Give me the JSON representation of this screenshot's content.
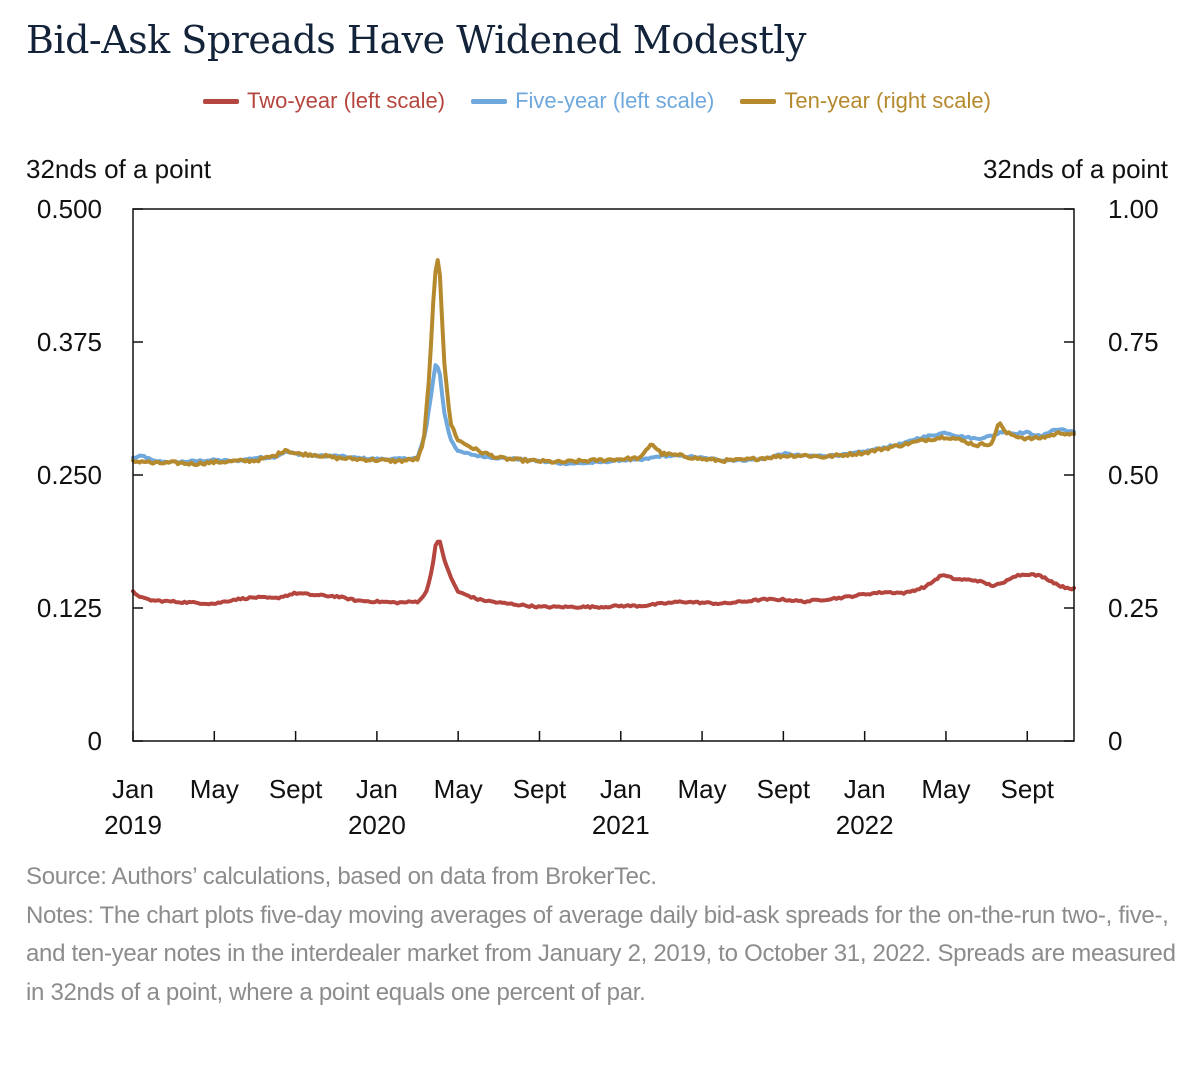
{
  "chart_data": {
    "type": "line",
    "title": "Bid-Ask Spreads Have Widened Modestly",
    "ylabel_left": "32nds of a point",
    "ylabel_right": "32nds of a point",
    "ylim_left": [
      0,
      0.5
    ],
    "ylim_right": [
      0,
      1.0
    ],
    "yticks_left": [
      "0",
      "0.125",
      "0.250",
      "0.375",
      "0.500"
    ],
    "yticks_right": [
      "0",
      "0.25",
      "0.50",
      "0.75",
      "1.00"
    ],
    "x_range_months": [
      0,
      46.3
    ],
    "xticks": [
      {
        "m": 0,
        "line1": "Jan",
        "line2": "2019"
      },
      {
        "m": 4,
        "line1": "May",
        "line2": ""
      },
      {
        "m": 8,
        "line1": "Sept",
        "line2": ""
      },
      {
        "m": 12,
        "line1": "Jan",
        "line2": "2020"
      },
      {
        "m": 16,
        "line1": "May",
        "line2": ""
      },
      {
        "m": 20,
        "line1": "Sept",
        "line2": ""
      },
      {
        "m": 24,
        "line1": "Jan",
        "line2": "2021"
      },
      {
        "m": 28,
        "line1": "May",
        "line2": ""
      },
      {
        "m": 32,
        "line1": "Sept",
        "line2": ""
      },
      {
        "m": 36,
        "line1": "Jan",
        "line2": "2022"
      },
      {
        "m": 40,
        "line1": "May",
        "line2": ""
      },
      {
        "m": 44,
        "line1": "Sept",
        "line2": ""
      }
    ],
    "series": [
      {
        "name": "Two-year (left scale)",
        "axis": "left",
        "color": "#b5463f",
        "points": [
          [
            0,
            0.14
          ],
          [
            0.5,
            0.134
          ],
          [
            1,
            0.132
          ],
          [
            2,
            0.131
          ],
          [
            3,
            0.13
          ],
          [
            4,
            0.129
          ],
          [
            5,
            0.133
          ],
          [
            6,
            0.135
          ],
          [
            7,
            0.134
          ],
          [
            8,
            0.139
          ],
          [
            9,
            0.137
          ],
          [
            10,
            0.136
          ],
          [
            11,
            0.132
          ],
          [
            12,
            0.131
          ],
          [
            13,
            0.13
          ],
          [
            14,
            0.131
          ],
          [
            14.4,
            0.138
          ],
          [
            14.7,
            0.16
          ],
          [
            14.9,
            0.186
          ],
          [
            15.1,
            0.187
          ],
          [
            15.3,
            0.172
          ],
          [
            15.6,
            0.155
          ],
          [
            16,
            0.14
          ],
          [
            17,
            0.133
          ],
          [
            18,
            0.13
          ],
          [
            19,
            0.128
          ],
          [
            20,
            0.126
          ],
          [
            21,
            0.126
          ],
          [
            22,
            0.126
          ],
          [
            23,
            0.126
          ],
          [
            24,
            0.127
          ],
          [
            25,
            0.127
          ],
          [
            26,
            0.129
          ],
          [
            27,
            0.131
          ],
          [
            28,
            0.13
          ],
          [
            29,
            0.129
          ],
          [
            30,
            0.131
          ],
          [
            31,
            0.133
          ],
          [
            32,
            0.133
          ],
          [
            33,
            0.131
          ],
          [
            34,
            0.133
          ],
          [
            35,
            0.135
          ],
          [
            36,
            0.138
          ],
          [
            37,
            0.14
          ],
          [
            38,
            0.139
          ],
          [
            39,
            0.145
          ],
          [
            39.8,
            0.156
          ],
          [
            40.5,
            0.152
          ],
          [
            41.5,
            0.151
          ],
          [
            42.3,
            0.146
          ],
          [
            42.8,
            0.148
          ],
          [
            43.3,
            0.155
          ],
          [
            44,
            0.157
          ],
          [
            44.7,
            0.155
          ],
          [
            45.2,
            0.15
          ],
          [
            45.7,
            0.145
          ],
          [
            46.3,
            0.143
          ]
        ]
      },
      {
        "name": "Five-year (left scale)",
        "axis": "left",
        "color": "#6fa8dc",
        "points": [
          [
            0,
            0.266
          ],
          [
            0.5,
            0.268
          ],
          [
            1,
            0.263
          ],
          [
            2,
            0.262
          ],
          [
            3,
            0.263
          ],
          [
            4,
            0.264
          ],
          [
            5,
            0.263
          ],
          [
            6,
            0.266
          ],
          [
            7,
            0.267
          ],
          [
            7.5,
            0.272
          ],
          [
            8,
            0.27
          ],
          [
            9,
            0.268
          ],
          [
            10,
            0.268
          ],
          [
            11,
            0.266
          ],
          [
            12,
            0.265
          ],
          [
            13,
            0.265
          ],
          [
            14,
            0.266
          ],
          [
            14.4,
            0.29
          ],
          [
            14.7,
            0.33
          ],
          [
            14.9,
            0.356
          ],
          [
            15.1,
            0.345
          ],
          [
            15.3,
            0.31
          ],
          [
            15.6,
            0.285
          ],
          [
            16,
            0.272
          ],
          [
            17,
            0.268
          ],
          [
            18,
            0.266
          ],
          [
            19,
            0.265
          ],
          [
            20,
            0.263
          ],
          [
            21,
            0.261
          ],
          [
            22,
            0.261
          ],
          [
            23,
            0.262
          ],
          [
            24,
            0.264
          ],
          [
            25,
            0.264
          ],
          [
            26,
            0.268
          ],
          [
            27,
            0.268
          ],
          [
            28,
            0.266
          ],
          [
            29,
            0.264
          ],
          [
            30,
            0.264
          ],
          [
            31,
            0.265
          ],
          [
            32,
            0.27
          ],
          [
            33,
            0.268
          ],
          [
            34,
            0.268
          ],
          [
            35,
            0.269
          ],
          [
            36,
            0.272
          ],
          [
            37,
            0.276
          ],
          [
            38,
            0.28
          ],
          [
            38.5,
            0.284
          ],
          [
            39,
            0.286
          ],
          [
            40,
            0.29
          ],
          [
            40.5,
            0.287
          ],
          [
            41.5,
            0.284
          ],
          [
            42.3,
            0.287
          ],
          [
            42.8,
            0.291
          ],
          [
            43.3,
            0.289
          ],
          [
            44,
            0.29
          ],
          [
            44.7,
            0.286
          ],
          [
            45.2,
            0.292
          ],
          [
            45.7,
            0.293
          ],
          [
            46.3,
            0.29
          ]
        ]
      },
      {
        "name": "Ten-year (right scale)",
        "axis": "right",
        "color": "#b58a2e",
        "points": [
          [
            0,
            0.525
          ],
          [
            0.5,
            0.526
          ],
          [
            1,
            0.522
          ],
          [
            2,
            0.523
          ],
          [
            3,
            0.521
          ],
          [
            4,
            0.524
          ],
          [
            5,
            0.526
          ],
          [
            6,
            0.527
          ],
          [
            7,
            0.536
          ],
          [
            7.5,
            0.548
          ],
          [
            8,
            0.54
          ],
          [
            9,
            0.538
          ],
          [
            10,
            0.532
          ],
          [
            11,
            0.53
          ],
          [
            12,
            0.528
          ],
          [
            13,
            0.526
          ],
          [
            14,
            0.53
          ],
          [
            14.3,
            0.56
          ],
          [
            14.6,
            0.7
          ],
          [
            14.8,
            0.84
          ],
          [
            14.95,
            0.915
          ],
          [
            15.1,
            0.88
          ],
          [
            15.3,
            0.72
          ],
          [
            15.6,
            0.6
          ],
          [
            16,
            0.565
          ],
          [
            17,
            0.545
          ],
          [
            18,
            0.532
          ],
          [
            19,
            0.528
          ],
          [
            20,
            0.526
          ],
          [
            21,
            0.524
          ],
          [
            22,
            0.526
          ],
          [
            23,
            0.528
          ],
          [
            24,
            0.53
          ],
          [
            25,
            0.532
          ],
          [
            25.5,
            0.56
          ],
          [
            26,
            0.54
          ],
          [
            27,
            0.536
          ],
          [
            28,
            0.53
          ],
          [
            29,
            0.527
          ],
          [
            30,
            0.528
          ],
          [
            31,
            0.532
          ],
          [
            32,
            0.536
          ],
          [
            33,
            0.537
          ],
          [
            34,
            0.534
          ],
          [
            35,
            0.538
          ],
          [
            36,
            0.542
          ],
          [
            37,
            0.55
          ],
          [
            38,
            0.558
          ],
          [
            39,
            0.566
          ],
          [
            40,
            0.572
          ],
          [
            40.5,
            0.568
          ],
          [
            41.5,
            0.556
          ],
          [
            42.3,
            0.56
          ],
          [
            42.6,
            0.602
          ],
          [
            42.9,
            0.58
          ],
          [
            43.3,
            0.575
          ],
          [
            44,
            0.568
          ],
          [
            44.7,
            0.57
          ],
          [
            45.2,
            0.575
          ],
          [
            45.7,
            0.58
          ],
          [
            46.3,
            0.575
          ]
        ]
      }
    ]
  },
  "legend": [
    {
      "label": "Two-year (left scale)",
      "color": "#b5463f"
    },
    {
      "label": "Five-year (left scale)",
      "color": "#6fa8dc"
    },
    {
      "label": "Ten-year (right scale)",
      "color": "#b58a2e"
    }
  ],
  "source": "Source: Authors’ calculations, based on data from BrokerTec.",
  "notes": "Notes: The chart plots five-day moving averages of average daily bid-ask spreads for the on-the-run two-, five-, and ten-year notes in the interdealer market from January 2, 2019, to October 31, 2022. Spreads are measured in 32nds of a point, where a point equals one percent of par."
}
